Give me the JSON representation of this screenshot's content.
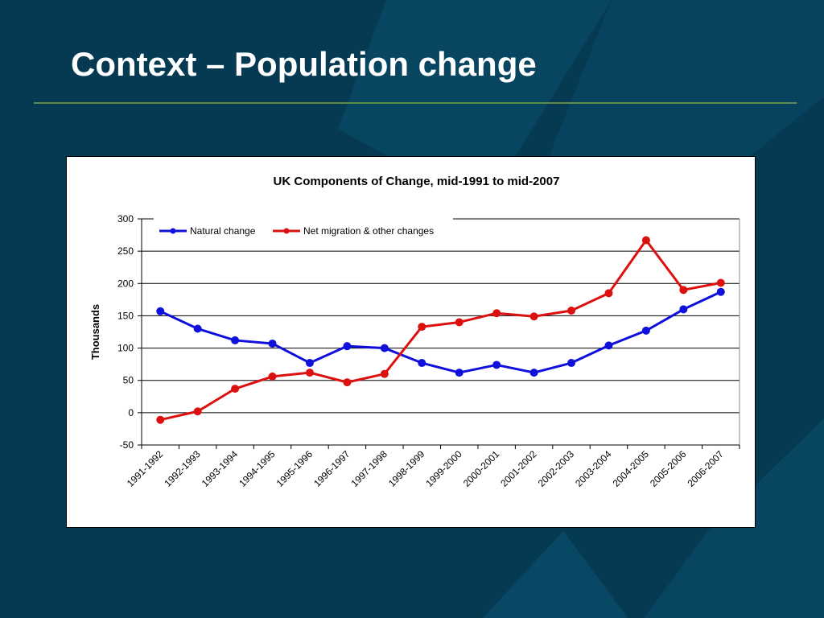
{
  "slide": {
    "title": "Context – Population change",
    "colors": {
      "background": "#063a52",
      "title_rule": "#5f8a4a",
      "title_text": "#ffffff"
    }
  },
  "chart_data": {
    "type": "line",
    "title": "UK Components of Change, mid-1991 to mid-2007",
    "xlabel": "",
    "ylabel": "Thousands",
    "categories": [
      "1991-1992",
      "1992-1993",
      "1993-1994",
      "1994-1995",
      "1995-1996",
      "1996-1997",
      "1997-1998",
      "1998-1999",
      "1999-2000",
      "2000-2001",
      "2001-2002",
      "2002-2003",
      "2003-2004",
      "2004-2005",
      "2005-2006",
      "2006-2007"
    ],
    "ylim": [
      -50,
      300
    ],
    "yticks": [
      -50,
      0,
      50,
      100,
      150,
      200,
      250,
      300
    ],
    "grid": true,
    "legend_position": "top-left",
    "series": [
      {
        "name": "Natural change",
        "color": "#1010dd",
        "values": [
          157,
          130,
          112,
          107,
          77,
          103,
          100,
          77,
          62,
          74,
          62,
          77,
          104,
          127,
          160,
          187
        ]
      },
      {
        "name": "Net migration & other changes",
        "color": "#dd1010",
        "values": [
          -11,
          2,
          37,
          56,
          62,
          47,
          60,
          133,
          140,
          154,
          149,
          158,
          185,
          267,
          190,
          201
        ]
      }
    ]
  }
}
